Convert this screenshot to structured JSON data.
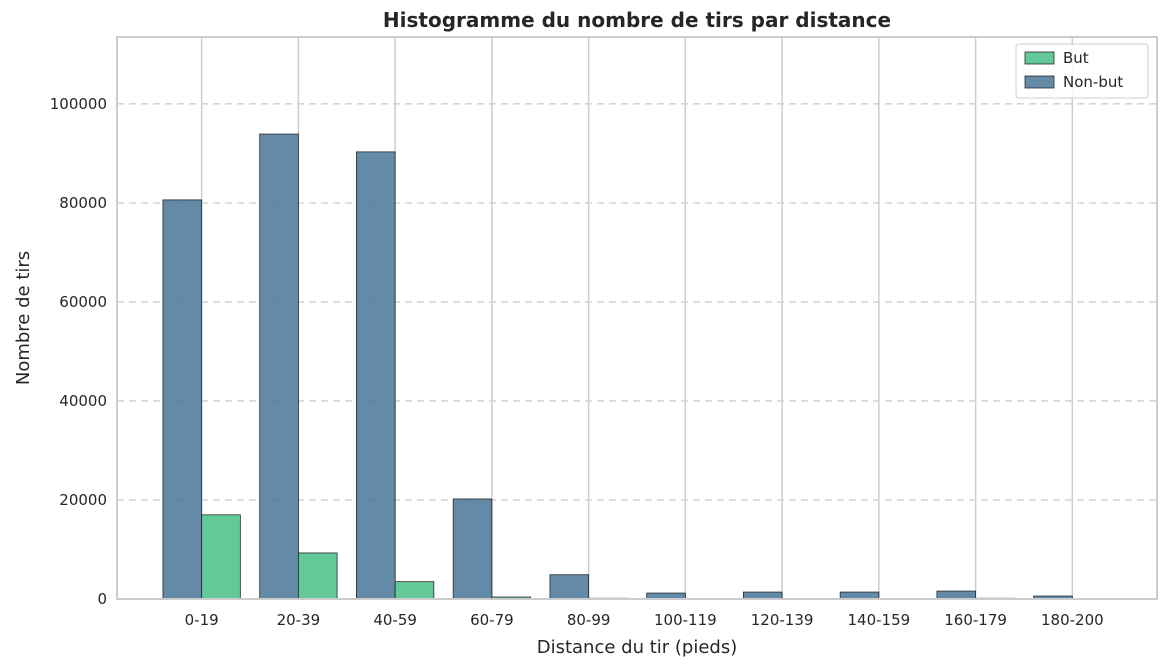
{
  "chart_data": {
    "type": "bar",
    "title": "Histogramme du nombre de tirs par distance",
    "xlabel": "Distance du tir (pieds)",
    "ylabel": "Nombre de tirs",
    "categories": [
      "0-19",
      "20-39",
      "40-59",
      "60-79",
      "80-99",
      "100-119",
      "120-139",
      "140-159",
      "160-179",
      "180-200"
    ],
    "series": [
      {
        "name": "Non-but",
        "color": "#4c7a9b",
        "values": [
          80600,
          93900,
          90300,
          20200,
          4900,
          1200,
          1400,
          1400,
          1600,
          600
        ]
      },
      {
        "name": "But",
        "color": "#4cc18a",
        "values": [
          17000,
          9300,
          3500,
          400,
          150,
          50,
          80,
          60,
          150,
          30
        ]
      }
    ],
    "ylim": [
      0,
      113500
    ],
    "yticks": [
      0,
      20000,
      40000,
      60000,
      80000,
      100000
    ],
    "grid": {
      "x": true,
      "y": true,
      "y_style": "dashed"
    },
    "legend": {
      "position": "top-right",
      "order": [
        "But",
        "Non-but"
      ]
    }
  }
}
